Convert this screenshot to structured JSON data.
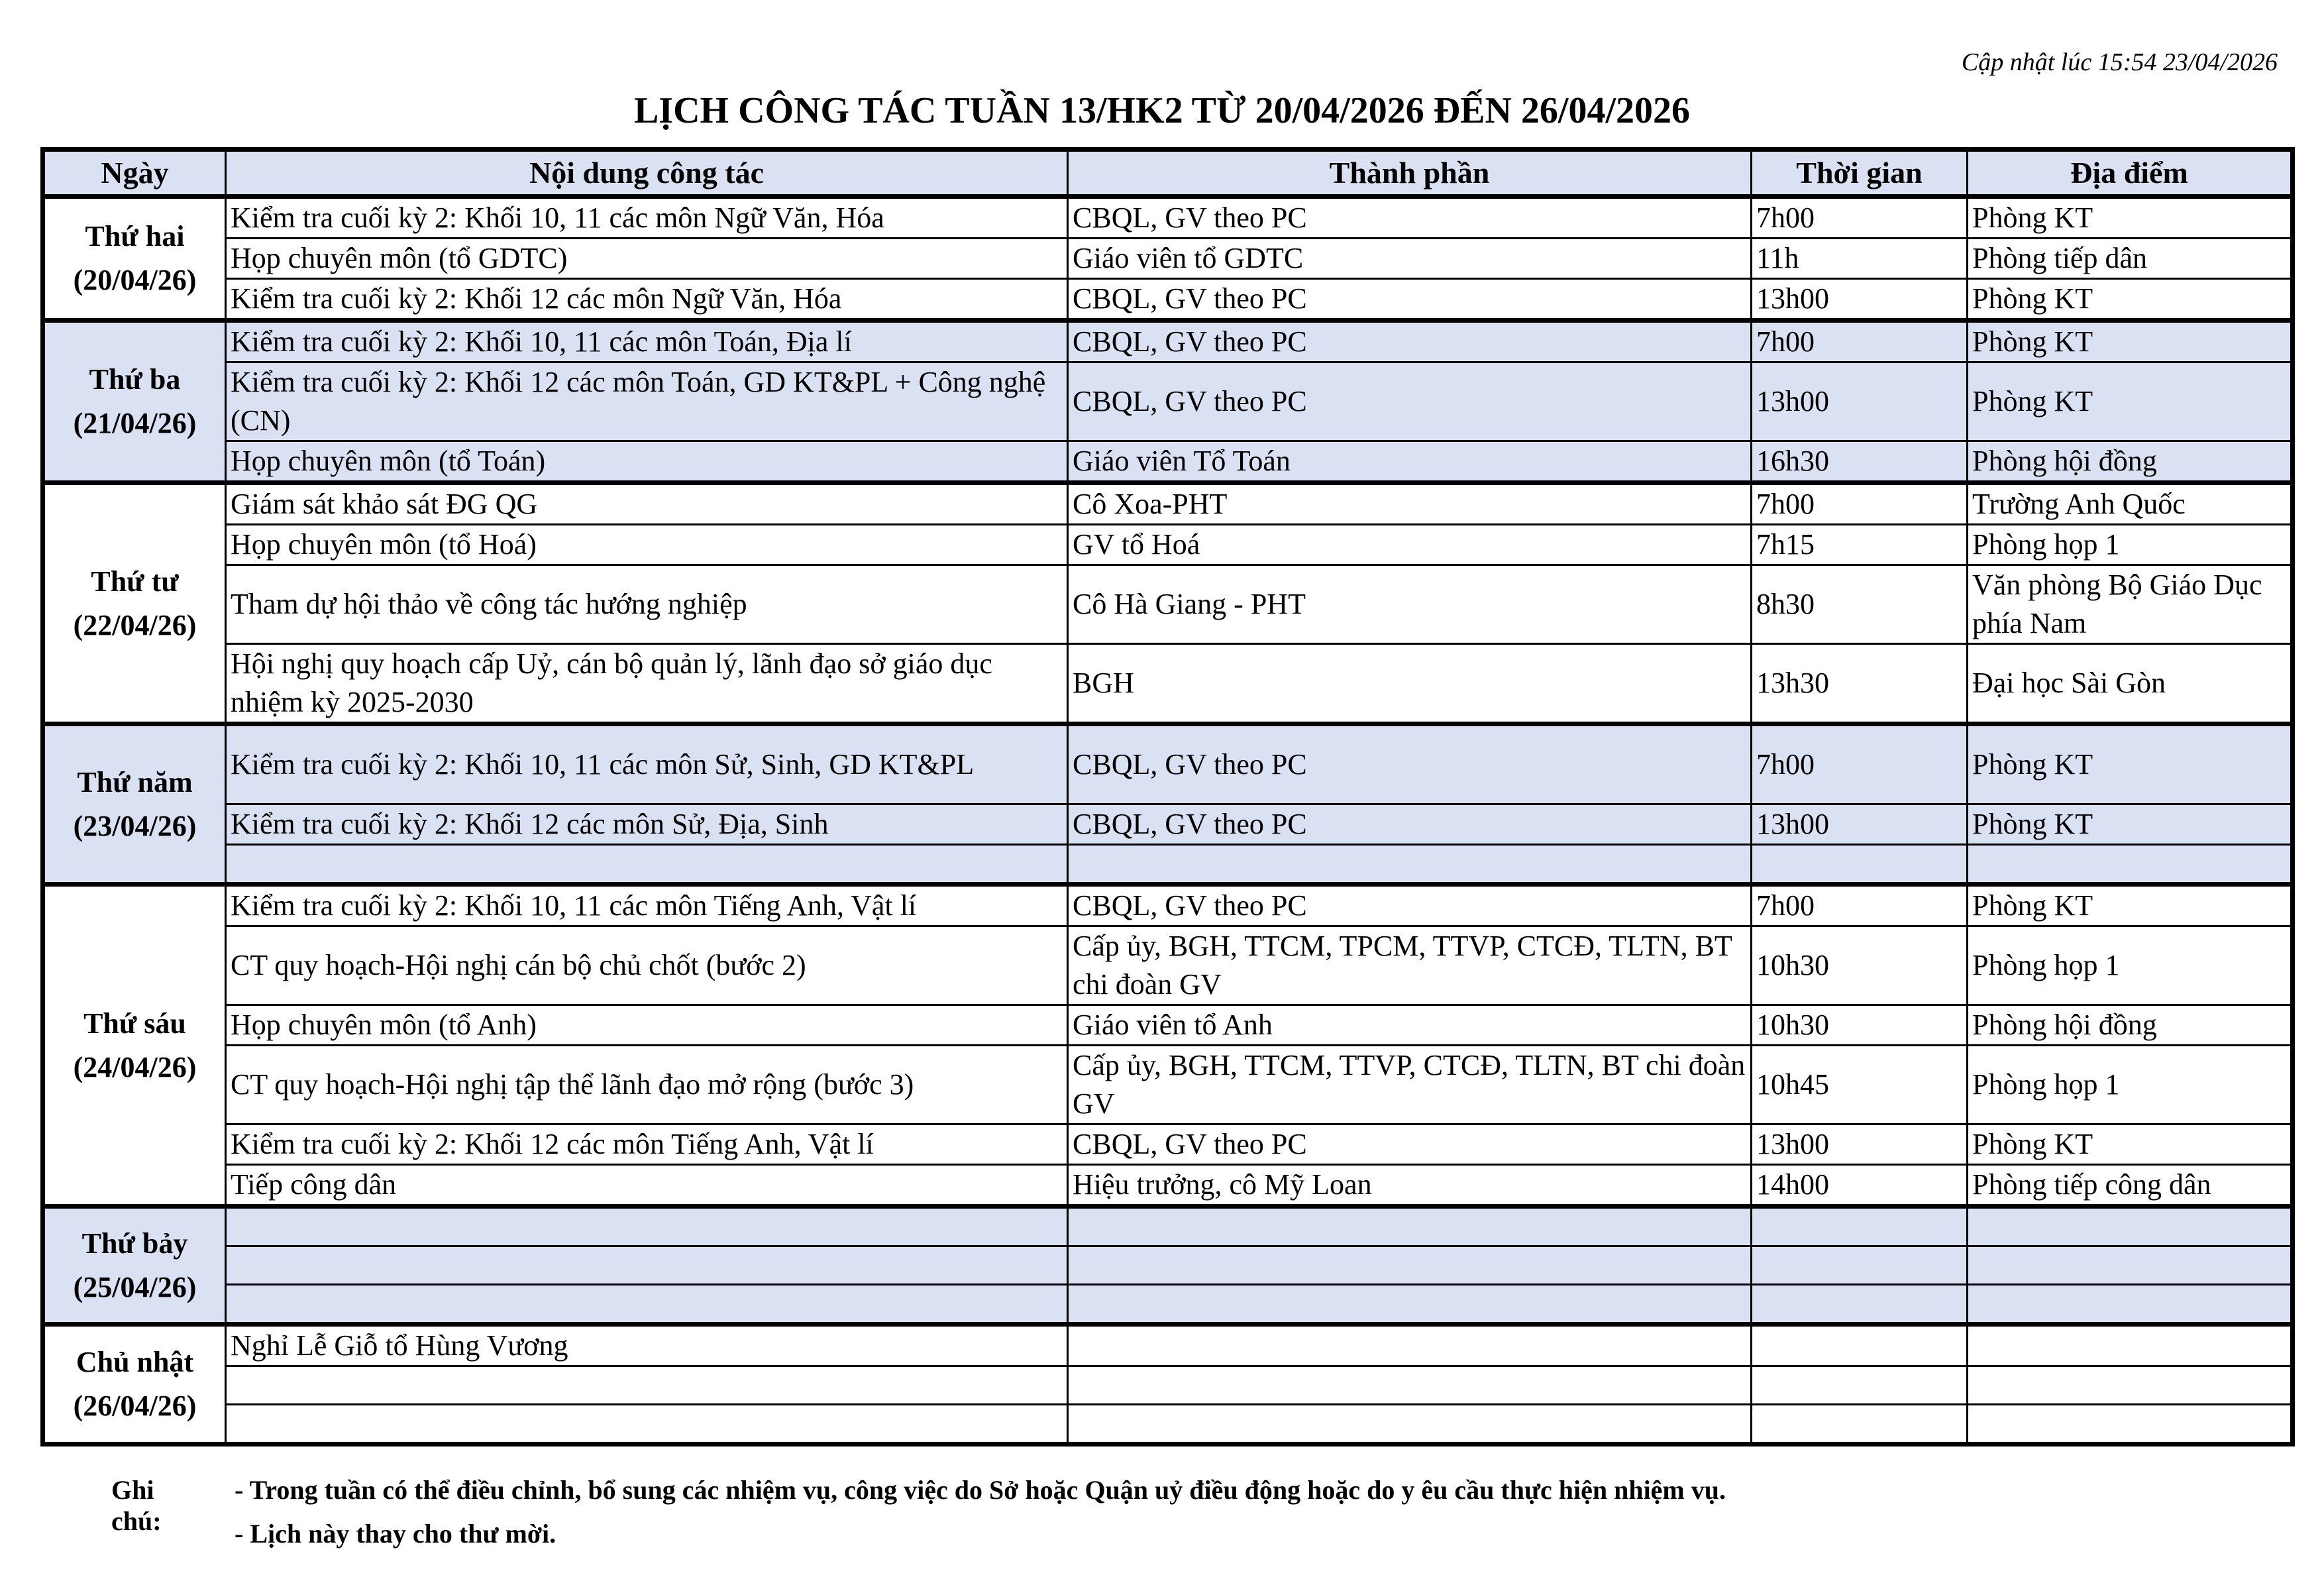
{
  "updated": "Cập nhật lúc 15:54 23/04/2026",
  "title": "LỊCH CÔNG TÁC TUẦN 13/HK2 TỪ 20/04/2026 ĐẾN 26/04/2026",
  "headers": [
    "Ngày",
    "Nội dung công tác",
    "Thành phần",
    "Thời gian",
    "Địa điểm"
  ],
  "shade_color": "#d9e1f2",
  "days": [
    {
      "name": "Thứ hai",
      "date": "(20/04/26)",
      "shaded": false,
      "rows": [
        {
          "content": "Kiểm tra cuối kỳ 2: Khối 10, 11 các môn Ngữ Văn, Hóa",
          "members": "CBQL, GV theo PC",
          "time": "7h00",
          "place": "Phòng KT"
        },
        {
          "content": "Họp chuyên môn (tổ GDTC)",
          "members": "Giáo viên tổ GDTC",
          "time": "11h",
          "place": "Phòng tiếp dân"
        },
        {
          "content": "Kiểm tra cuối kỳ 2: Khối 12 các môn Ngữ Văn, Hóa",
          "members": "CBQL, GV theo PC",
          "time": "13h00",
          "place": "Phòng KT"
        }
      ]
    },
    {
      "name": "Thứ ba",
      "date": "(21/04/26)",
      "shaded": true,
      "rows": [
        {
          "content": "Kiểm tra cuối kỳ 2: Khối 10, 11 các môn Toán, Địa lí",
          "members": "CBQL, GV theo PC",
          "time": "7h00",
          "place": "Phòng KT"
        },
        {
          "content": "Kiểm tra cuối kỳ 2: Khối 12 các môn Toán, GD KT&PL + Công nghệ (CN)",
          "members": "CBQL, GV theo PC",
          "time": "13h00",
          "place": "Phòng KT",
          "tall": true
        },
        {
          "content": "Họp chuyên môn (tổ Toán)",
          "members": "Giáo viên Tổ Toán",
          "time": "16h30",
          "place": "Phòng hội đồng"
        }
      ]
    },
    {
      "name": "Thứ tư",
      "date": "(22/04/26)",
      "shaded": false,
      "rows": [
        {
          "content": "Giám sát khảo sát ĐG QG",
          "members": "Cô Xoa-PHT",
          "time": "7h00",
          "place": "Trường Anh Quốc"
        },
        {
          "content": "Họp chuyên môn (tổ Hoá)",
          "members": "GV tổ Hoá",
          "time": "7h15",
          "place": "Phòng họp 1"
        },
        {
          "content": "Tham dự hội thảo về công tác hướng nghiệp",
          "members": "Cô Hà Giang - PHT",
          "time": "8h30",
          "place": "Văn phòng Bộ Giáo Dục phía Nam",
          "tall": true
        },
        {
          "content": "Hội nghị quy hoạch cấp Uỷ, cán bộ quản lý, lãnh đạo sở giáo dục nhiệm kỳ 2025-2030",
          "members": "BGH",
          "time": "13h30",
          "place": "Đại học Sài Gòn",
          "tall": true
        }
      ]
    },
    {
      "name": "Thứ năm",
      "date": "(23/04/26)",
      "shaded": true,
      "rows": [
        {
          "content": "Kiểm tra cuối kỳ 2: Khối 10, 11 các môn Sử, Sinh, GD KT&PL",
          "members": "CBQL, GV theo PC",
          "time": "7h00",
          "place": "Phòng KT",
          "tall": true
        },
        {
          "content": "Kiểm tra cuối kỳ 2: Khối 12 các môn Sử, Địa, Sinh",
          "members": "CBQL, GV theo PC",
          "time": "13h00",
          "place": "Phòng KT"
        },
        {
          "content": "",
          "members": "",
          "time": "",
          "place": ""
        }
      ]
    },
    {
      "name": "Thứ sáu",
      "date": "(24/04/26)",
      "shaded": false,
      "rows": [
        {
          "content": "Kiểm tra cuối kỳ 2: Khối 10, 11 các môn Tiếng Anh, Vật lí",
          "members": "CBQL, GV theo PC",
          "time": "7h00",
          "place": "Phòng KT"
        },
        {
          "content": "CT quy hoạch-Hội nghị cán bộ chủ chốt (bước 2)",
          "members": "Cấp ủy, BGH, TTCM, TPCM, TTVP, CTCĐ, TLTN, BT chi đoàn GV",
          "time": "10h30",
          "place": "Phòng họp 1",
          "tall": true
        },
        {
          "content": "Họp chuyên môn (tổ Anh)",
          "members": "Giáo viên tổ Anh",
          "time": "10h30",
          "place": "Phòng hội đồng"
        },
        {
          "content": "CT quy hoạch-Hội nghị tập thể lãnh đạo mở rộng (bước 3)",
          "members": "Cấp ủy, BGH, TTCM, TTVP, CTCĐ, TLTN, BT chi đoàn GV",
          "time": "10h45",
          "place": "Phòng họp 1",
          "tall": true
        },
        {
          "content": "Kiểm tra cuối kỳ 2: Khối 12 các môn Tiếng Anh, Vật lí",
          "members": "CBQL, GV theo PC",
          "time": "13h00",
          "place": "Phòng KT"
        },
        {
          "content": "Tiếp công dân",
          "members": "Hiệu trưởng, cô Mỹ Loan",
          "time": "14h00",
          "place": "Phòng tiếp công dân"
        }
      ]
    },
    {
      "name": "Thứ bảy",
      "date": "(25/04/26)",
      "shaded": true,
      "rows": [
        {
          "content": "",
          "members": "",
          "time": "",
          "place": ""
        },
        {
          "content": "",
          "members": "",
          "time": "",
          "place": ""
        },
        {
          "content": "",
          "members": "",
          "time": "",
          "place": ""
        }
      ]
    },
    {
      "name": "Chủ nhật",
      "date": "(26/04/26)",
      "shaded": false,
      "rows": [
        {
          "content": "Nghỉ Lễ Giỗ tổ Hùng Vương",
          "members": "",
          "time": "",
          "place": ""
        },
        {
          "content": "",
          "members": "",
          "time": "",
          "place": ""
        },
        {
          "content": "",
          "members": "",
          "time": "",
          "place": ""
        }
      ]
    }
  ],
  "notes": {
    "label": "Ghi chú:",
    "items": [
      "- Trong tuần có thể điều chỉnh, bổ sung các nhiệm vụ, công việc do Sở hoặc Quận uỷ điều động hoặc do y êu cầu thực hiện nhiệm vụ.",
      "- Lịch này thay cho thư mời."
    ]
  }
}
